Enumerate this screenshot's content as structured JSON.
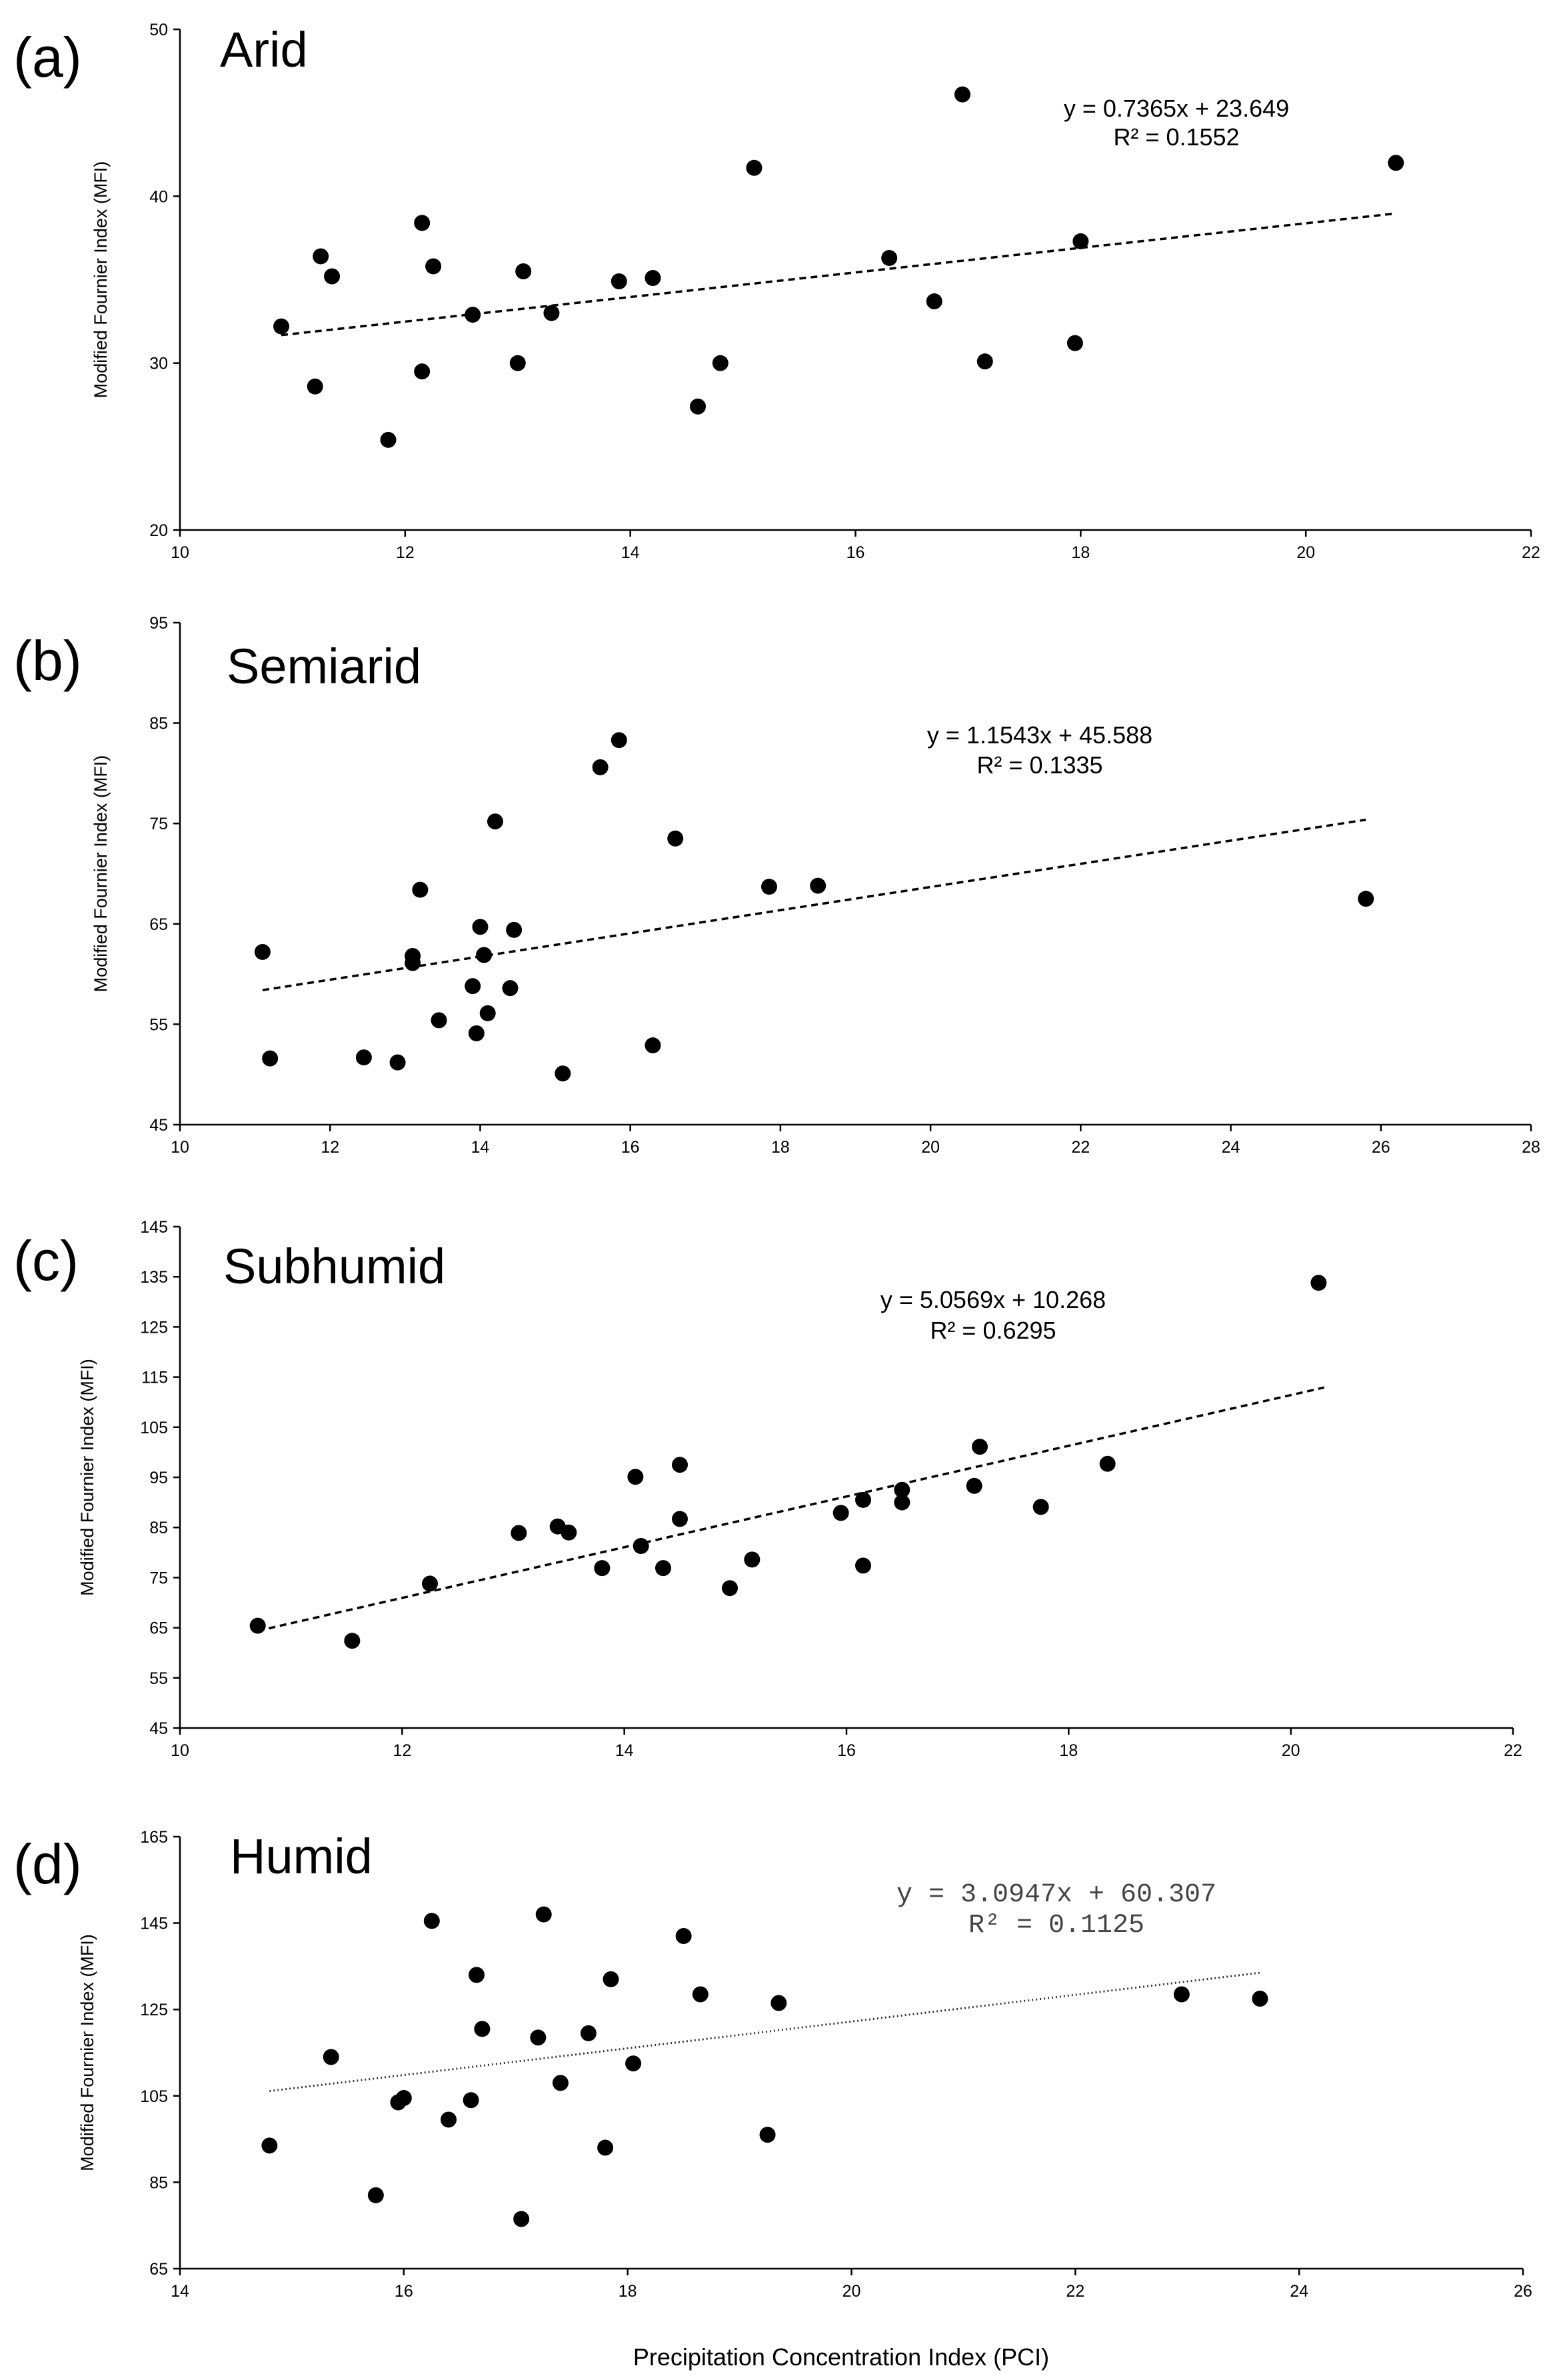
{
  "figure": {
    "x_axis_title": "Precipitation Concentration Index (PCI)"
  },
  "chart_data": [
    {
      "type": "scatter",
      "letter": "(a)",
      "title": "Arid",
      "ylabel": "Modified Fournier Index (MFI)",
      "xlim": [
        10,
        22
      ],
      "ylim": [
        20,
        50
      ],
      "xticks": [
        10,
        12,
        14,
        16,
        18,
        20,
        22
      ],
      "yticks": [
        20,
        30,
        40,
        50
      ],
      "trendline": {
        "slope": 0.7365,
        "intercept": 23.649,
        "x_range": [
          10.9,
          20.8
        ],
        "style": "dashed"
      },
      "equation": "y = 0.7365x + 23.649",
      "r2": "R² = 0.1552",
      "points": [
        {
          "x": 10.9,
          "y": 32.2
        },
        {
          "x": 11.2,
          "y": 28.6
        },
        {
          "x": 11.25,
          "y": 36.4
        },
        {
          "x": 11.35,
          "y": 35.2
        },
        {
          "x": 11.85,
          "y": 25.4
        },
        {
          "x": 12.15,
          "y": 38.4
        },
        {
          "x": 12.15,
          "y": 29.5
        },
        {
          "x": 12.25,
          "y": 35.8
        },
        {
          "x": 12.6,
          "y": 32.9
        },
        {
          "x": 13.0,
          "y": 30.0
        },
        {
          "x": 13.05,
          "y": 35.5
        },
        {
          "x": 13.3,
          "y": 33.0
        },
        {
          "x": 13.9,
          "y": 34.9
        },
        {
          "x": 14.2,
          "y": 35.1
        },
        {
          "x": 14.6,
          "y": 27.4
        },
        {
          "x": 14.8,
          "y": 30.0
        },
        {
          "x": 15.1,
          "y": 41.7
        },
        {
          "x": 16.3,
          "y": 36.3
        },
        {
          "x": 16.7,
          "y": 33.7
        },
        {
          "x": 16.95,
          "y": 46.1
        },
        {
          "x": 17.15,
          "y": 30.1
        },
        {
          "x": 17.95,
          "y": 31.2
        },
        {
          "x": 18.0,
          "y": 37.3
        },
        {
          "x": 20.8,
          "y": 42.0
        }
      ]
    },
    {
      "type": "scatter",
      "letter": "(b)",
      "title": "Semiarid",
      "ylabel": "Modified Fournier Index (MFI)",
      "xlim": [
        10,
        28
      ],
      "ylim": [
        45,
        95
      ],
      "xticks": [
        10,
        12,
        14,
        16,
        18,
        20,
        22,
        24,
        26,
        28
      ],
      "yticks": [
        45,
        55,
        65,
        75,
        85,
        95
      ],
      "trendline": {
        "slope": 1.1543,
        "intercept": 45.588,
        "x_range": [
          11.1,
          25.8
        ],
        "style": "dashed"
      },
      "equation": "y = 1.1543x + 45.588",
      "r2": "R² = 0.1335",
      "points": [
        {
          "x": 11.1,
          "y": 62.2
        },
        {
          "x": 11.2,
          "y": 51.6
        },
        {
          "x": 12.45,
          "y": 51.7
        },
        {
          "x": 12.9,
          "y": 51.2
        },
        {
          "x": 13.1,
          "y": 61.8
        },
        {
          "x": 13.1,
          "y": 61.1
        },
        {
          "x": 13.2,
          "y": 68.4
        },
        {
          "x": 13.45,
          "y": 55.4
        },
        {
          "x": 13.9,
          "y": 58.8
        },
        {
          "x": 13.95,
          "y": 54.1
        },
        {
          "x": 14.0,
          "y": 64.7
        },
        {
          "x": 14.05,
          "y": 61.9
        },
        {
          "x": 14.1,
          "y": 56.1
        },
        {
          "x": 14.2,
          "y": 75.2
        },
        {
          "x": 14.4,
          "y": 58.6
        },
        {
          "x": 14.45,
          "y": 64.4
        },
        {
          "x": 15.1,
          "y": 50.1
        },
        {
          "x": 15.6,
          "y": 80.6
        },
        {
          "x": 15.85,
          "y": 83.3
        },
        {
          "x": 16.3,
          "y": 52.9
        },
        {
          "x": 16.6,
          "y": 73.5
        },
        {
          "x": 17.85,
          "y": 68.7
        },
        {
          "x": 18.5,
          "y": 68.8
        },
        {
          "x": 25.8,
          "y": 67.5
        }
      ]
    },
    {
      "type": "scatter",
      "letter": "(c)",
      "title": "Subhumid",
      "ylabel": "Modified Fournier Index (MFI)",
      "xlim": [
        10,
        22
      ],
      "ylim": [
        45,
        145
      ],
      "xticks": [
        10,
        12,
        14,
        16,
        18,
        20,
        22
      ],
      "yticks": [
        45,
        55,
        65,
        75,
        85,
        95,
        105,
        115,
        125,
        135,
        145
      ],
      "trendline": {
        "slope": 5.0569,
        "intercept": 10.268,
        "x_range": [
          10.7,
          20.3
        ],
        "style": "dashed"
      },
      "equation": "y = 5.0569x + 10.268",
      "r2": "R² = 0.6295",
      "points": [
        {
          "x": 10.7,
          "y": 65.4
        },
        {
          "x": 11.55,
          "y": 62.4
        },
        {
          "x": 12.25,
          "y": 73.8
        },
        {
          "x": 13.05,
          "y": 83.9
        },
        {
          "x": 13.4,
          "y": 85.2
        },
        {
          "x": 13.5,
          "y": 84.0
        },
        {
          "x": 13.8,
          "y": 76.9
        },
        {
          "x": 14.1,
          "y": 95.1
        },
        {
          "x": 14.15,
          "y": 81.3
        },
        {
          "x": 14.35,
          "y": 76.9
        },
        {
          "x": 14.5,
          "y": 86.7
        },
        {
          "x": 14.5,
          "y": 97.5
        },
        {
          "x": 14.95,
          "y": 72.9
        },
        {
          "x": 15.15,
          "y": 78.6
        },
        {
          "x": 15.95,
          "y": 87.9
        },
        {
          "x": 16.15,
          "y": 90.5
        },
        {
          "x": 16.15,
          "y": 77.4
        },
        {
          "x": 16.5,
          "y": 92.5
        },
        {
          "x": 16.5,
          "y": 90.0
        },
        {
          "x": 17.15,
          "y": 93.3
        },
        {
          "x": 17.2,
          "y": 101.1
        },
        {
          "x": 17.75,
          "y": 89.1
        },
        {
          "x": 18.35,
          "y": 97.7
        },
        {
          "x": 20.25,
          "y": 133.8
        }
      ]
    },
    {
      "type": "scatter",
      "letter": "(d)",
      "title": "Humid",
      "ylabel": "Modified Fournier Index (MFI)",
      "xlim": [
        14,
        26
      ],
      "ylim": [
        65,
        165
      ],
      "xticks": [
        14,
        16,
        18,
        20,
        22,
        24,
        26
      ],
      "yticks": [
        65,
        85,
        105,
        125,
        145,
        165
      ],
      "trendline": {
        "slope": 3.0947,
        "intercept": 60.307,
        "x_range": [
          14.8,
          23.65
        ],
        "style": "dotted"
      },
      "equation": "y = 3.0947x + 60.307",
      "r2": "R² = 0.1125",
      "points": [
        {
          "x": 14.8,
          "y": 93.5
        },
        {
          "x": 15.35,
          "y": 114.0
        },
        {
          "x": 15.75,
          "y": 82.0
        },
        {
          "x": 15.95,
          "y": 103.5
        },
        {
          "x": 16.0,
          "y": 104.5
        },
        {
          "x": 16.25,
          "y": 145.5
        },
        {
          "x": 16.4,
          "y": 99.5
        },
        {
          "x": 16.6,
          "y": 104.0
        },
        {
          "x": 16.65,
          "y": 133.0
        },
        {
          "x": 16.7,
          "y": 120.5
        },
        {
          "x": 17.05,
          "y": 76.5
        },
        {
          "x": 17.2,
          "y": 118.5
        },
        {
          "x": 17.25,
          "y": 147.0
        },
        {
          "x": 17.4,
          "y": 108.0
        },
        {
          "x": 17.65,
          "y": 119.5
        },
        {
          "x": 17.8,
          "y": 93.0
        },
        {
          "x": 17.85,
          "y": 132.0
        },
        {
          "x": 18.05,
          "y": 112.5
        },
        {
          "x": 18.5,
          "y": 142.0
        },
        {
          "x": 18.65,
          "y": 128.5
        },
        {
          "x": 19.25,
          "y": 96.0
        },
        {
          "x": 19.35,
          "y": 126.5
        },
        {
          "x": 22.95,
          "y": 128.5
        },
        {
          "x": 23.65,
          "y": 127.5
        }
      ]
    }
  ]
}
